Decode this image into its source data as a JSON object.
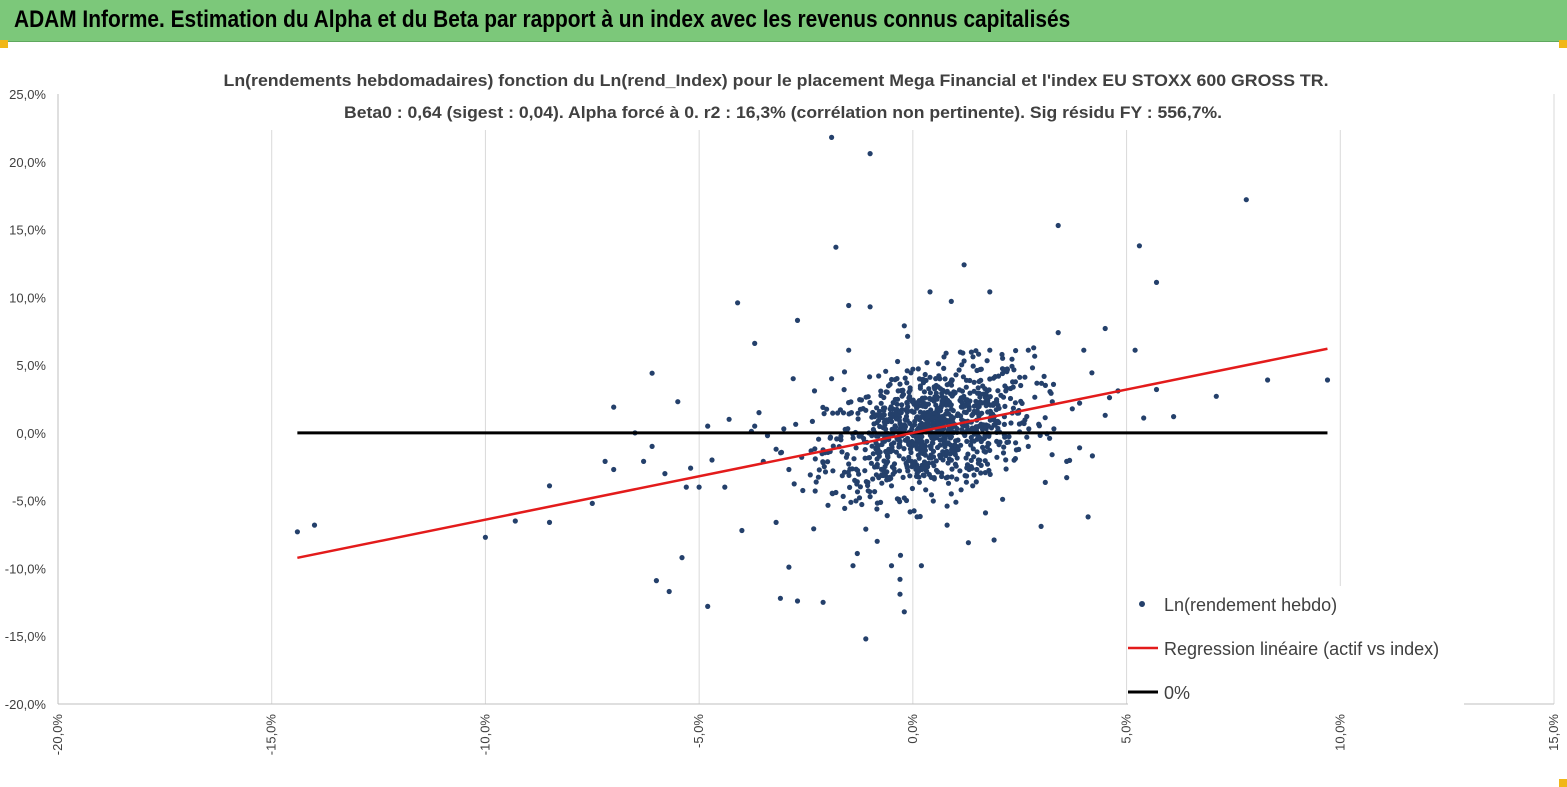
{
  "banner": {
    "title": "ADAM Informe. Estimation du Alpha et du Beta par rapport à un index avec les revenus connus capitalisés"
  },
  "colors": {
    "banner_bg": "#7cc87a",
    "corner_marker": "#f1b718",
    "points": "#24406b",
    "regression": "#e31b1b",
    "zero_line": "#000000",
    "gridline": "#d9d9d9"
  },
  "chart_data": {
    "type": "scatter",
    "title": "Ln(rendements hebdomadaires) fonction du Ln(rend_Index) pour le placement Mega Financial  et l'index EU STOXX 600 GROSS TR.",
    "subtitle": "Beta0 : 0,64 (sigest : 0,04). Alpha forcé à 0. r2 : 16,3% (corrélation non pertinente). Sig résidu FY : 556,7%.",
    "xlim": [
      -0.2,
      0.15
    ],
    "ylim": [
      -0.2,
      0.25
    ],
    "x_ticks": [
      -0.2,
      -0.15,
      -0.1,
      -0.05,
      0.0,
      0.05,
      0.1,
      0.15
    ],
    "x_tick_labels": [
      "-20,0%",
      "-15,0%",
      "-10,0%",
      "-5,0%",
      "0,0%",
      "5,0%",
      "10,0%",
      "15,0%"
    ],
    "y_ticks": [
      0.25,
      0.2,
      0.15,
      0.1,
      0.05,
      0.0,
      -0.05,
      -0.1,
      -0.15,
      -0.2
    ],
    "y_tick_labels": [
      "25,0%",
      "20,0%",
      "15,0%",
      "10,0%",
      "5,0%",
      "0,0%",
      "-5,0%",
      "-10,0%",
      "-15,0%",
      "-20,0%"
    ],
    "vertical_grid": true,
    "horizontal_grid": false,
    "legend_position": "bottom-right",
    "series": [
      {
        "name": "Ln(rendement hebdo)",
        "kind": "points",
        "note_count": 1100,
        "points": [
          [
            -0.144,
            -0.073
          ],
          [
            -0.14,
            -0.068
          ],
          [
            -0.1,
            -0.077
          ],
          [
            -0.093,
            -0.065
          ],
          [
            -0.085,
            -0.066
          ],
          [
            -0.085,
            -0.039
          ],
          [
            -0.075,
            -0.052
          ],
          [
            -0.072,
            -0.021
          ],
          [
            -0.07,
            -0.027
          ],
          [
            -0.07,
            0.019
          ],
          [
            -0.061,
            0.044
          ],
          [
            -0.06,
            -0.109
          ],
          [
            -0.057,
            -0.117
          ],
          [
            -0.055,
            0.023
          ],
          [
            -0.054,
            -0.092
          ],
          [
            -0.048,
            -0.128
          ],
          [
            -0.041,
            0.096
          ],
          [
            -0.037,
            0.066
          ],
          [
            -0.031,
            -0.122
          ],
          [
            -0.029,
            -0.099
          ],
          [
            -0.027,
            -0.124
          ],
          [
            -0.027,
            0.083
          ],
          [
            -0.021,
            -0.125
          ],
          [
            -0.019,
            0.218
          ],
          [
            -0.018,
            0.137
          ],
          [
            -0.016,
            0.045
          ],
          [
            -0.014,
            -0.098
          ],
          [
            -0.015,
            0.094
          ],
          [
            -0.01,
            0.206
          ],
          [
            -0.01,
            0.093
          ],
          [
            -0.011,
            -0.152
          ],
          [
            -0.005,
            -0.098
          ],
          [
            -0.003,
            -0.108
          ],
          [
            -0.003,
            -0.119
          ],
          [
            -0.002,
            -0.132
          ],
          [
            0.002,
            -0.098
          ],
          [
            -0.002,
            0.079
          ],
          [
            0.004,
            0.104
          ],
          [
            0.009,
            0.097
          ],
          [
            0.012,
            0.124
          ],
          [
            0.018,
            0.104
          ],
          [
            0.034,
            0.153
          ],
          [
            0.034,
            0.074
          ],
          [
            0.045,
            0.077
          ],
          [
            0.052,
            0.061
          ],
          [
            0.053,
            0.138
          ],
          [
            0.054,
            0.011
          ],
          [
            0.057,
            0.111
          ],
          [
            0.057,
            0.032
          ],
          [
            0.061,
            0.012
          ],
          [
            0.071,
            0.027
          ],
          [
            0.078,
            0.172
          ],
          [
            0.083,
            0.039
          ],
          [
            0.097,
            0.039
          ],
          [
            0.041,
            -0.062
          ],
          [
            0.04,
            0.061
          ],
          [
            0.036,
            -0.021
          ],
          [
            0.036,
            -0.033
          ],
          [
            0.03,
            -0.069
          ],
          [
            0.027,
            0.061
          ],
          [
            0.021,
            -0.049
          ],
          [
            0.019,
            -0.079
          ],
          [
            0.017,
            -0.059
          ],
          [
            0.013,
            -0.081
          ],
          [
            0.008,
            -0.068
          ],
          [
            0.008,
            -0.054
          ],
          [
            0.001,
            -0.062
          ],
          [
            -0.006,
            -0.061
          ],
          [
            -0.011,
            -0.071
          ],
          [
            -0.013,
            -0.089
          ],
          [
            -0.015,
            0.061
          ],
          [
            -0.019,
            0.04
          ],
          [
            -0.023,
            0.031
          ],
          [
            -0.028,
            0.04
          ],
          [
            -0.032,
            -0.066
          ],
          [
            -0.04,
            -0.072
          ],
          [
            -0.044,
            -0.04
          ],
          [
            -0.05,
            -0.04
          ],
          [
            -0.053,
            -0.04
          ],
          [
            -0.058,
            -0.03
          ],
          [
            -0.061,
            -0.01
          ],
          [
            -0.063,
            -0.021
          ],
          [
            -0.065,
            0.0
          ],
          [
            -0.043,
            0.01
          ],
          [
            -0.048,
            0.005
          ],
          [
            -0.037,
            0.005
          ],
          [
            -0.034,
            -0.002
          ],
          [
            -0.036,
            0.015
          ],
          [
            -0.047,
            -0.02
          ],
          [
            -0.052,
            -0.026
          ],
          [
            0.022,
            -0.007
          ],
          [
            0.024,
            -0.019
          ],
          [
            0.027,
            -0.01
          ],
          [
            0.032,
            -0.004
          ],
          [
            0.033,
            0.003
          ],
          [
            0.039,
            -0.011
          ],
          [
            0.042,
            -0.017
          ],
          [
            0.046,
            0.026
          ],
          [
            0.048,
            0.031
          ],
          [
            0.045,
            0.013
          ],
          [
            0.039,
            0.022
          ],
          [
            0.031,
            0.035
          ],
          [
            0.028,
            0.048
          ],
          [
            0.025,
            0.041
          ],
          [
            0.021,
            0.055
          ],
          [
            0.018,
            0.061
          ],
          [
            0.015,
            0.046
          ],
          [
            0.012,
            0.053
          ],
          [
            0.009,
            0.038
          ],
          [
            0.006,
            0.051
          ],
          [
            0.004,
            0.041
          ],
          [
            0.0,
            0.047
          ],
          [
            -0.003,
            0.036
          ],
          [
            -0.006,
            0.03
          ],
          [
            -0.008,
            0.042
          ],
          [
            0.001,
            -0.03
          ],
          [
            0.003,
            -0.042
          ],
          [
            0.005,
            -0.033
          ],
          [
            0.009,
            -0.045
          ],
          [
            0.011,
            -0.028
          ],
          [
            0.014,
            -0.039
          ],
          [
            0.016,
            -0.024
          ],
          [
            -0.002,
            -0.048
          ],
          [
            -0.005,
            -0.039
          ],
          [
            -0.008,
            -0.033
          ],
          [
            -0.01,
            -0.047
          ],
          [
            -0.013,
            -0.036
          ],
          [
            -0.016,
            -0.029
          ],
          [
            -0.018,
            -0.044
          ],
          [
            -0.021,
            -0.022
          ],
          [
            -0.024,
            -0.031
          ],
          [
            -0.026,
            -0.018
          ],
          [
            -0.029,
            -0.027
          ],
          [
            -0.032,
            -0.012
          ],
          [
            -0.035,
            -0.021
          ]
        ]
      },
      {
        "name": "Regression linéaire (actif vs index)",
        "kind": "line",
        "slope": 0.64,
        "intercept": 0,
        "x_range": [
          -0.144,
          0.097
        ]
      },
      {
        "name": "0%",
        "kind": "line",
        "slope": 0,
        "intercept": 0,
        "x_range": [
          -0.144,
          0.097
        ]
      }
    ]
  }
}
